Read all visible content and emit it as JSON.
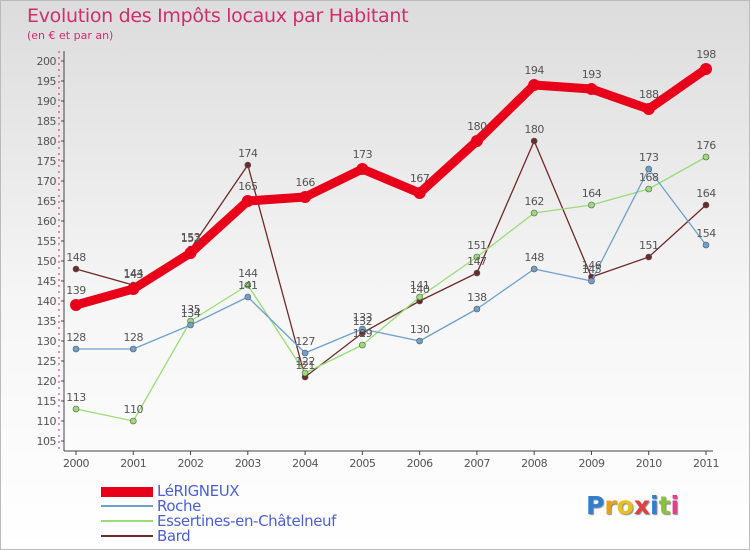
{
  "title": "Evolution des Impôts locaux par Habitant",
  "subtitle": "(en € et par an)",
  "logo": {
    "text": "Proxiti",
    "letter_colors": [
      "#2f7fd0",
      "#e8a020",
      "#e8c020",
      "#e04040",
      "#2f7fd0",
      "#8cc040",
      "#e04090"
    ]
  },
  "chart_data": {
    "type": "line",
    "title": "Evolution des Impôts locaux par Habitant",
    "subtitle": "(en € et par an)",
    "x": [
      "2000",
      "2001",
      "2002",
      "2003",
      "2004",
      "2005",
      "2006",
      "2007",
      "2008",
      "2009",
      "2010",
      "2011"
    ],
    "ylim": [
      105,
      200
    ],
    "yticks": [
      105,
      110,
      115,
      120,
      125,
      130,
      135,
      140,
      145,
      150,
      155,
      160,
      165,
      170,
      175,
      180,
      185,
      190,
      195,
      200
    ],
    "grid": false,
    "legend_position": "bottom-left",
    "series": [
      {
        "name": "Bard",
        "color": "#6e2a2a",
        "values": [
          148,
          144,
          153,
          174,
          121,
          132,
          140,
          147,
          180,
          146,
          151,
          164
        ]
      },
      {
        "name": "Essertines-en-Châtelneuf",
        "color": "#99dd77",
        "values": [
          113,
          110,
          135,
          144,
          122,
          129,
          141,
          151,
          162,
          164,
          168,
          176
        ]
      },
      {
        "name": "Roche",
        "color": "#6fa0cc",
        "values": [
          128,
          128,
          134,
          141,
          127,
          133,
          130,
          138,
          148,
          145,
          173,
          154
        ]
      },
      {
        "name": "LéRIGNEUX",
        "color": "#e8001a",
        "values": [
          139,
          143,
          152,
          165,
          166,
          173,
          167,
          180,
          194,
          193,
          188,
          198
        ]
      }
    ],
    "legend": [
      "LéRIGNEUX",
      "Roche",
      "Essertines-en-Châtelneuf",
      "Bard"
    ]
  }
}
